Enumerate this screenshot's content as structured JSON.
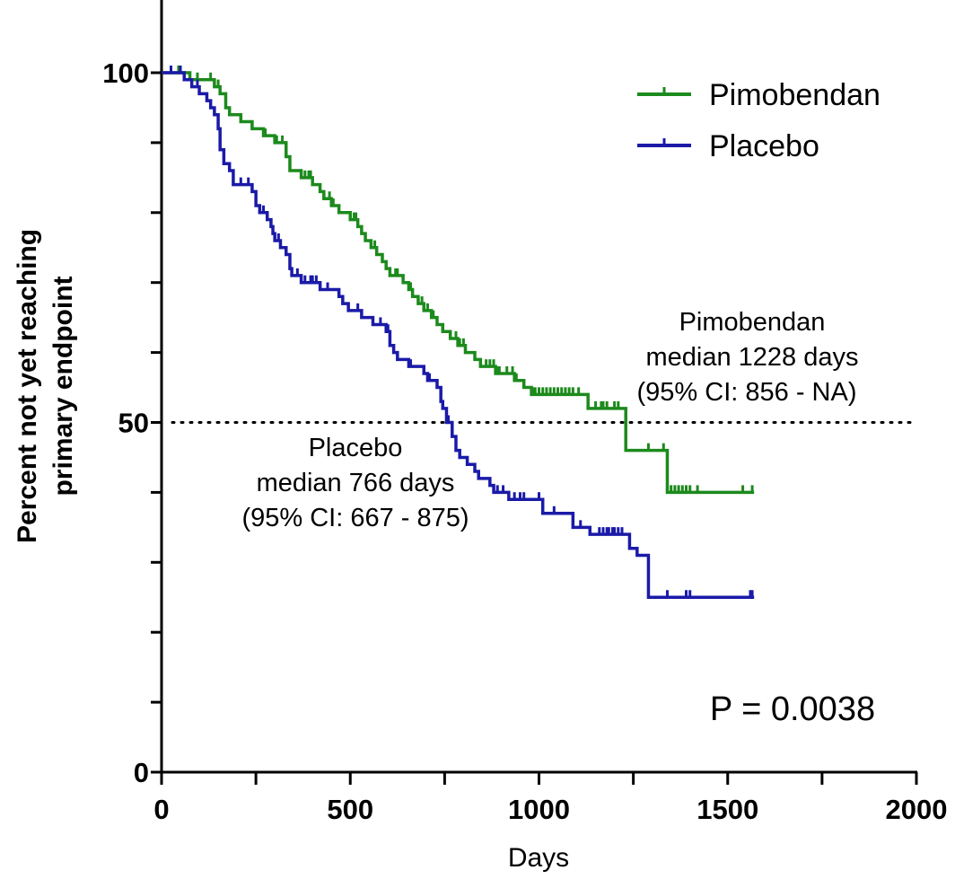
{
  "chart_data": {
    "type": "line",
    "title": "",
    "xlabel": "Days",
    "ylabel_lines": [
      "Percent not yet reaching",
      "primary endpoint"
    ],
    "xlim": [
      0,
      2000
    ],
    "ylim": [
      0,
      100
    ],
    "x_ticks": [
      0,
      500,
      1000,
      1500,
      2000
    ],
    "x_tick_labels": [
      "0",
      "500",
      "1000",
      "1500",
      "2000"
    ],
    "y_ticks": [
      0,
      50,
      100
    ],
    "y_tick_labels": [
      "0",
      "50",
      "100"
    ],
    "reference_line": {
      "y": 50,
      "style": "dotted"
    },
    "legend": {
      "placement": "top-right",
      "entries": [
        "Pimobendan",
        "Placebo"
      ]
    },
    "series": [
      {
        "name": "Pimobendan",
        "color": "#1c8a1c",
        "steps": [
          [
            0,
            100
          ],
          [
            75,
            99
          ],
          [
            105,
            99
          ],
          [
            140,
            98
          ],
          [
            155,
            97
          ],
          [
            170,
            95
          ],
          [
            180,
            94
          ],
          [
            210,
            93
          ],
          [
            240,
            92
          ],
          [
            270,
            91
          ],
          [
            300,
            90
          ],
          [
            330,
            88
          ],
          [
            340,
            86
          ],
          [
            370,
            85
          ],
          [
            400,
            84
          ],
          [
            420,
            83
          ],
          [
            430,
            82
          ],
          [
            450,
            81
          ],
          [
            470,
            80
          ],
          [
            500,
            79
          ],
          [
            520,
            78
          ],
          [
            530,
            77
          ],
          [
            540,
            76
          ],
          [
            555,
            75
          ],
          [
            570,
            74
          ],
          [
            585,
            73
          ],
          [
            595,
            72
          ],
          [
            605,
            71
          ],
          [
            640,
            70
          ],
          [
            655,
            69
          ],
          [
            665,
            68
          ],
          [
            680,
            67
          ],
          [
            695,
            66
          ],
          [
            715,
            65
          ],
          [
            730,
            64
          ],
          [
            745,
            63
          ],
          [
            765,
            62
          ],
          [
            785,
            61
          ],
          [
            805,
            60
          ],
          [
            830,
            59
          ],
          [
            845,
            58
          ],
          [
            885,
            57
          ],
          [
            935,
            56
          ],
          [
            960,
            55
          ],
          [
            980,
            54
          ],
          [
            1130,
            52
          ],
          [
            1230,
            46
          ],
          [
            1340,
            40
          ],
          [
            1570,
            40
          ]
        ],
        "censor_x": [
          45,
          95,
          130,
          150,
          240,
          270,
          275,
          305,
          320,
          380,
          390,
          395,
          445,
          455,
          510,
          515,
          565,
          620,
          625,
          660,
          690,
          705,
          720,
          780,
          790,
          800,
          860,
          870,
          880,
          890,
          895,
          915,
          930,
          940,
          985,
          990,
          1000,
          1010,
          1020,
          1030,
          1040,
          1050,
          1060,
          1070,
          1080,
          1090,
          1105,
          1150,
          1165,
          1170,
          1180,
          1200,
          1210,
          1290,
          1330,
          1350,
          1360,
          1370,
          1380,
          1390,
          1400,
          1420,
          1540,
          1565
        ]
      },
      {
        "name": "Placebo",
        "color": "#1a1aa8",
        "steps": [
          [
            0,
            100
          ],
          [
            60,
            99
          ],
          [
            80,
            98
          ],
          [
            100,
            97
          ],
          [
            120,
            96
          ],
          [
            130,
            95
          ],
          [
            140,
            94
          ],
          [
            150,
            92
          ],
          [
            155,
            89
          ],
          [
            165,
            87
          ],
          [
            180,
            86
          ],
          [
            190,
            84
          ],
          [
            240,
            83
          ],
          [
            250,
            81
          ],
          [
            260,
            80
          ],
          [
            280,
            79
          ],
          [
            290,
            78
          ],
          [
            295,
            77
          ],
          [
            300,
            76
          ],
          [
            315,
            75
          ],
          [
            330,
            74
          ],
          [
            340,
            72
          ],
          [
            345,
            71
          ],
          [
            370,
            70
          ],
          [
            420,
            69
          ],
          [
            470,
            68
          ],
          [
            480,
            67
          ],
          [
            495,
            66
          ],
          [
            530,
            65
          ],
          [
            560,
            64
          ],
          [
            595,
            63
          ],
          [
            605,
            61
          ],
          [
            615,
            60
          ],
          [
            625,
            59
          ],
          [
            655,
            58
          ],
          [
            695,
            57
          ],
          [
            705,
            56
          ],
          [
            730,
            55
          ],
          [
            740,
            53
          ],
          [
            745,
            52
          ],
          [
            755,
            50
          ],
          [
            770,
            48
          ],
          [
            780,
            46
          ],
          [
            790,
            45
          ],
          [
            810,
            44
          ],
          [
            830,
            43
          ],
          [
            840,
            42
          ],
          [
            870,
            41
          ],
          [
            870,
            41
          ],
          [
            880,
            40
          ],
          [
            920,
            39
          ],
          [
            1010,
            37
          ],
          [
            1090,
            35
          ],
          [
            1135,
            34
          ],
          [
            1240,
            32
          ],
          [
            1260,
            31
          ],
          [
            1290,
            25
          ],
          [
            1570,
            25
          ]
        ],
        "censor_x": [
          25,
          50,
          95,
          210,
          230,
          270,
          310,
          360,
          380,
          395,
          400,
          410,
          420,
          440,
          520,
          580,
          600,
          660,
          710,
          760,
          880,
          890,
          905,
          935,
          950,
          960,
          1000,
          1040,
          1110,
          1160,
          1170,
          1180,
          1185,
          1195,
          1200,
          1210,
          1220,
          1340,
          1390,
          1400,
          1560,
          1565
        ]
      }
    ],
    "annotations": [
      {
        "lines": [
          "Pimobendan",
          "median 1228 days",
          "(95% CI: 856 - NA)"
        ]
      },
      {
        "lines": [
          "Placebo",
          "median 766 days",
          "(95% CI: 667 - 875)"
        ]
      },
      {
        "lines": [
          "P = 0.0038"
        ]
      }
    ]
  }
}
